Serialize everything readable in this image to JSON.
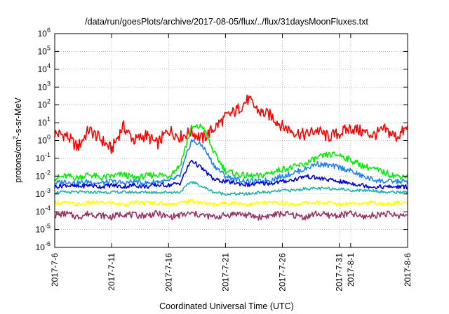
{
  "chart_data": {
    "type": "line",
    "title": "/data/run/goesPlots/archive/2017-08-05/flux/../flux/31daysMoonFluxes.txt",
    "xlabel": "Coordinated Universal Time (UTC)",
    "ylabel": "protons/cm²-s-sr-MeV",
    "x_range": [
      "2017-07-06",
      "2017-08-06"
    ],
    "x_ticks": [
      "2017-7-6",
      "2017-7-11",
      "2017-7-16",
      "2017-7-21",
      "2017-7-26",
      "2017-7-31",
      "2017-8-1",
      "2017-8-6"
    ],
    "y_scale": "log",
    "ylim": [
      1e-06,
      1000000.0
    ],
    "y_ticks": [
      {
        "base": "10",
        "exp": "-6"
      },
      {
        "base": "10",
        "exp": "-5"
      },
      {
        "base": "10",
        "exp": "-4"
      },
      {
        "base": "10",
        "exp": "-3"
      },
      {
        "base": "10",
        "exp": "-2"
      },
      {
        "base": "10",
        "exp": "-1"
      },
      {
        "base": "10",
        "exp": "0"
      },
      {
        "base": "10",
        "exp": "1"
      },
      {
        "base": "10",
        "exp": "2"
      },
      {
        "base": "10",
        "exp": "3"
      },
      {
        "base": "10",
        "exp": "4"
      },
      {
        "base": "10",
        "exp": "5"
      },
      {
        "base": "10",
        "exp": "6"
      }
    ],
    "grid": true,
    "legend": "none",
    "series": [
      {
        "color": "#ff0000",
        "x_day": [
          0,
          1,
          2,
          3,
          4,
          5,
          6,
          7,
          8,
          9,
          10,
          11,
          12,
          13,
          14,
          15,
          16,
          17,
          18,
          19,
          20,
          21,
          22,
          23,
          24,
          25,
          26,
          27,
          28,
          29,
          30,
          31
        ],
        "log10_y": [
          0.4,
          0.3,
          -0.4,
          0.6,
          0.1,
          -0.5,
          0.8,
          0.0,
          0.3,
          -0.2,
          0.6,
          0.2,
          0.5,
          0.1,
          0.7,
          1.3,
          1.7,
          2.3,
          1.6,
          1.4,
          0.8,
          0.5,
          0.3,
          0.6,
          0.2,
          0.4,
          0.7,
          0.5,
          0.3,
          0.6,
          0.2,
          0.7
        ]
      },
      {
        "color": "#00ee00",
        "x_day": [
          0,
          1,
          2,
          3,
          4,
          5,
          6,
          7,
          8,
          9,
          10,
          11,
          12,
          13,
          14,
          15,
          16,
          17,
          18,
          19,
          20,
          21,
          22,
          23,
          24,
          25,
          26,
          27,
          28,
          29,
          30,
          31
        ],
        "log10_y": [
          -2.1,
          -2.0,
          -2.1,
          -1.9,
          -2.1,
          -2.0,
          -1.9,
          -2.1,
          -2.0,
          -1.9,
          -2.0,
          -1.4,
          0.7,
          0.8,
          -0.7,
          -1.7,
          -1.9,
          -2.0,
          -2.0,
          -1.8,
          -1.6,
          -1.5,
          -1.3,
          -1.0,
          -0.8,
          -0.8,
          -1.1,
          -1.4,
          -1.6,
          -1.8,
          -2.0,
          -2.0
        ]
      },
      {
        "color": "#1e82ff",
        "x_day": [
          0,
          1,
          2,
          3,
          4,
          5,
          6,
          7,
          8,
          9,
          10,
          11,
          12,
          13,
          14,
          15,
          16,
          17,
          18,
          19,
          20,
          21,
          22,
          23,
          24,
          25,
          26,
          27,
          28,
          29,
          30,
          31
        ],
        "log10_y": [
          -2.4,
          -2.3,
          -2.4,
          -2.3,
          -2.4,
          -2.3,
          -2.4,
          -2.3,
          -2.4,
          -2.3,
          -2.3,
          -2.0,
          0.0,
          -0.3,
          -1.4,
          -2.0,
          -2.2,
          -2.3,
          -2.3,
          -2.2,
          -2.0,
          -1.8,
          -1.6,
          -1.3,
          -1.4,
          -1.5,
          -1.7,
          -2.0,
          -2.2,
          -2.3,
          -2.3,
          -2.3
        ]
      },
      {
        "color": "#0000dd",
        "x_day": [
          0,
          1,
          2,
          3,
          4,
          5,
          6,
          7,
          8,
          9,
          10,
          11,
          12,
          13,
          14,
          15,
          16,
          17,
          18,
          19,
          20,
          21,
          22,
          23,
          24,
          25,
          26,
          27,
          28,
          29,
          30,
          31
        ],
        "log10_y": [
          -2.6,
          -2.5,
          -2.6,
          -2.5,
          -2.6,
          -2.5,
          -2.6,
          -2.5,
          -2.6,
          -2.5,
          -2.5,
          -2.4,
          -1.1,
          -1.6,
          -2.2,
          -2.3,
          -2.4,
          -2.5,
          -2.4,
          -2.4,
          -2.3,
          -2.2,
          -2.0,
          -2.1,
          -2.2,
          -2.3,
          -2.4,
          -2.5,
          -2.6,
          -2.6,
          -2.6,
          -2.6
        ]
      },
      {
        "color": "#20b2aa",
        "x_day": [
          0,
          1,
          2,
          3,
          4,
          5,
          6,
          7,
          8,
          9,
          10,
          11,
          12,
          13,
          14,
          15,
          16,
          17,
          18,
          19,
          20,
          21,
          22,
          23,
          24,
          25,
          26,
          27,
          28,
          29,
          30,
          31
        ],
        "log10_y": [
          -2.9,
          -2.9,
          -2.9,
          -2.9,
          -2.9,
          -2.9,
          -2.9,
          -2.9,
          -2.9,
          -2.9,
          -2.9,
          -2.9,
          -2.3,
          -2.6,
          -2.9,
          -3.0,
          -3.0,
          -3.0,
          -2.9,
          -2.9,
          -2.8,
          -2.8,
          -2.7,
          -2.7,
          -2.7,
          -2.7,
          -2.8,
          -2.8,
          -2.8,
          -2.9,
          -2.9,
          -2.9
        ]
      },
      {
        "color": "#ffff00",
        "x_day": [
          0,
          1,
          2,
          3,
          4,
          5,
          6,
          7,
          8,
          9,
          10,
          11,
          12,
          13,
          14,
          15,
          16,
          17,
          18,
          19,
          20,
          21,
          22,
          23,
          24,
          25,
          26,
          27,
          28,
          29,
          30,
          31
        ],
        "log10_y": [
          -3.5,
          -3.5,
          -3.6,
          -3.5,
          -3.5,
          -3.5,
          -3.6,
          -3.5,
          -3.5,
          -3.5,
          -3.6,
          -3.5,
          -3.4,
          -3.5,
          -3.6,
          -3.5,
          -3.5,
          -3.6,
          -3.5,
          -3.5,
          -3.5,
          -3.6,
          -3.5,
          -3.5,
          -3.5,
          -3.6,
          -3.5,
          -3.5,
          -3.5,
          -3.6,
          -3.5,
          -3.5
        ]
      },
      {
        "color": "#993366",
        "x_day": [
          0,
          1,
          2,
          3,
          4,
          5,
          6,
          7,
          8,
          9,
          10,
          11,
          12,
          13,
          14,
          15,
          16,
          17,
          18,
          19,
          20,
          21,
          22,
          23,
          24,
          25,
          26,
          27,
          28,
          29,
          30,
          31
        ],
        "log10_y": [
          -4.2,
          -4.1,
          -4.3,
          -4.1,
          -4.2,
          -4.3,
          -4.1,
          -4.2,
          -4.2,
          -4.1,
          -4.3,
          -4.2,
          -4.1,
          -4.2,
          -4.3,
          -4.2,
          -4.1,
          -4.2,
          -4.3,
          -4.2,
          -4.1,
          -4.2,
          -4.3,
          -4.1,
          -4.2,
          -4.2,
          -4.1,
          -4.3,
          -4.2,
          -4.1,
          -4.2,
          -4.2
        ]
      }
    ]
  }
}
